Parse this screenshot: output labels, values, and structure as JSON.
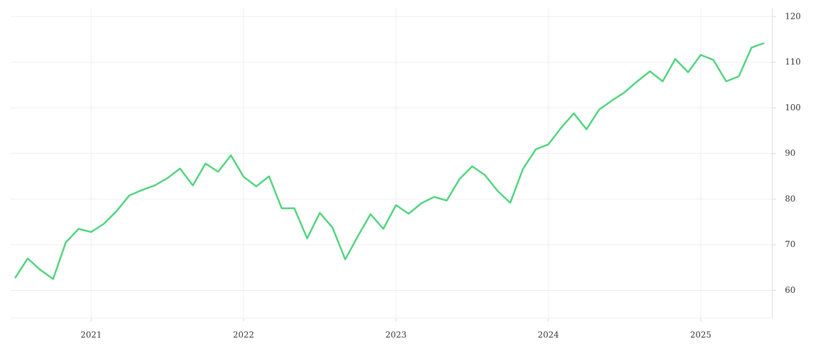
{
  "chart_data": {
    "type": "line",
    "x": [
      2020.5,
      2020.583,
      2020.667,
      2020.75,
      2020.833,
      2020.917,
      2021,
      2021.083,
      2021.167,
      2021.25,
      2021.333,
      2021.417,
      2021.5,
      2021.583,
      2021.667,
      2021.75,
      2021.833,
      2021.917,
      2022,
      2022.083,
      2022.167,
      2022.25,
      2022.333,
      2022.417,
      2022.5,
      2022.583,
      2022.667,
      2022.75,
      2022.833,
      2022.917,
      2023,
      2023.083,
      2023.167,
      2023.25,
      2023.333,
      2023.417,
      2023.5,
      2023.583,
      2023.667,
      2023.75,
      2023.833,
      2023.917,
      2024,
      2024.083,
      2024.167,
      2024.25,
      2024.333,
      2024.417,
      2024.5,
      2024.583,
      2024.667,
      2024.75,
      2024.833,
      2024.917,
      2025,
      2025.083,
      2025.167,
      2025.25,
      2025.333,
      2025.417
    ],
    "series": [
      {
        "color": "#4fd47c",
        "values": [
          62.7,
          67,
          64.5,
          62.5,
          70.5,
          73.5,
          72.8,
          74.6,
          77.4,
          80.8,
          82,
          83,
          84.6,
          86.7,
          83,
          87.8,
          86,
          89.6,
          84.9,
          82.8,
          85,
          78,
          78,
          71.4,
          77,
          73.8,
          66.8,
          71.9,
          76.7,
          73.5,
          78.7,
          76.8,
          79.1,
          80.5,
          79.7,
          84.4,
          87.2,
          85.3,
          81.8,
          79.2,
          86.6,
          90.9,
          92,
          95.6,
          98.8,
          95.3,
          99.6,
          101.6,
          103.4,
          105.8,
          108,
          105.8,
          110.7,
          107.8,
          111.6,
          110.5,
          105.8,
          106.9,
          113.2,
          114.2
        ]
      }
    ],
    "xlim": [
      2020.47,
      2025.47
    ],
    "xticks": [
      2021,
      2022,
      2023,
      2024,
      2025
    ],
    "ylim": [
      54,
      121.8
    ],
    "yticks": [
      60,
      70,
      80,
      90,
      100,
      110,
      120
    ],
    "grid": true
  }
}
